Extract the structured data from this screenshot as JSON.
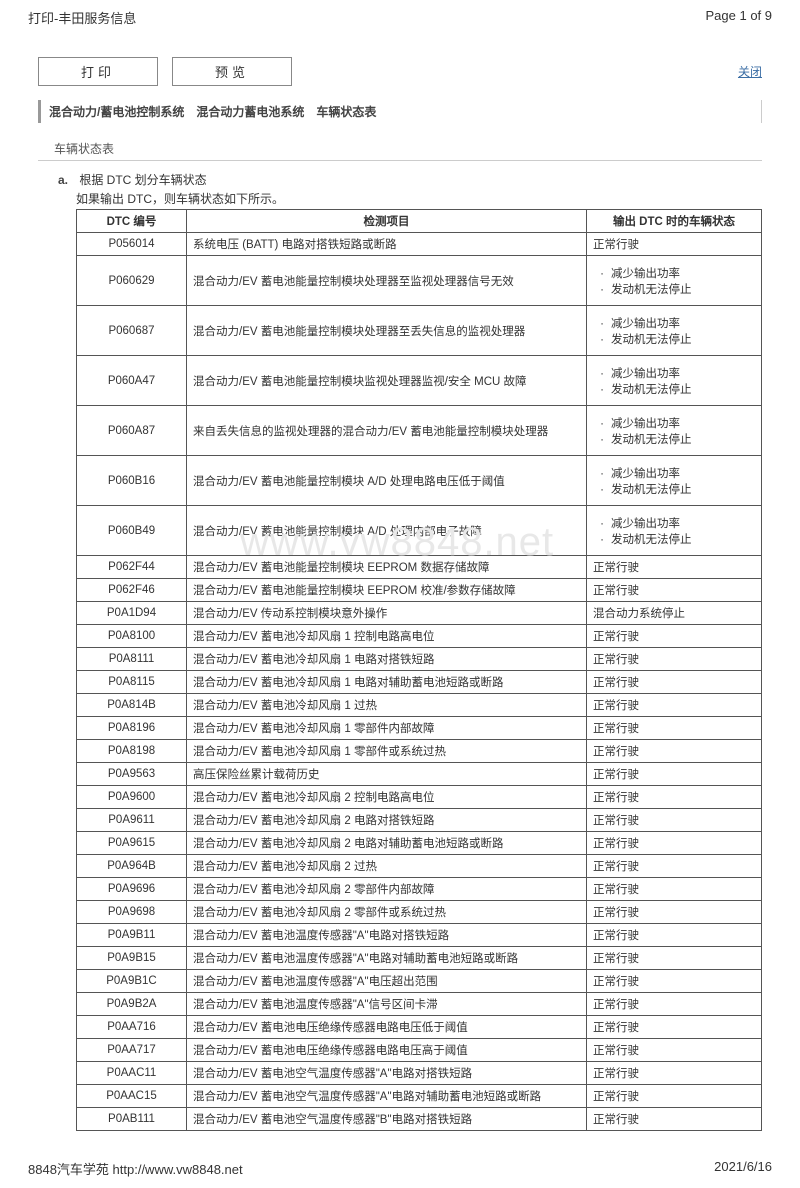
{
  "header": {
    "title": "打印-丰田服务信息",
    "page_label": "Page 1 of 9"
  },
  "toolbar": {
    "print": "打印",
    "preview": "预览",
    "close": "关闭"
  },
  "breadcrumb": "混合动力/蓄电池控制系统　混合动力蓄电池系统　车辆状态表",
  "section_label": "车辆状态表",
  "list_item": {
    "marker": "a.",
    "line1": "根据 DTC 划分车辆状态",
    "line2": "如果输出 DTC，则车辆状态如下所示。"
  },
  "table": {
    "headers": {
      "code": "DTC 编号",
      "desc": "检测项目",
      "status": "输出 DTC 时的车辆状态"
    },
    "status_pair": [
      "减少输出功率",
      "发动机无法停止"
    ],
    "rows": [
      {
        "code": "P056014",
        "desc": "系统电压 (BATT) 电路对搭铁短路或断路",
        "status_type": "normal"
      },
      {
        "code": "P060629",
        "desc": "混合动力/EV 蓄电池能量控制模块处理器至监视处理器信号无效",
        "status_type": "pair",
        "tall": true
      },
      {
        "code": "P060687",
        "desc": "混合动力/EV 蓄电池能量控制模块处理器至丢失信息的监视处理器",
        "status_type": "pair",
        "tall": true
      },
      {
        "code": "P060A47",
        "desc": "混合动力/EV 蓄电池能量控制模块监视处理器监视/安全 MCU 故障",
        "status_type": "pair",
        "tall": true
      },
      {
        "code": "P060A87",
        "desc": "来自丢失信息的监视处理器的混合动力/EV 蓄电池能量控制模块处理器",
        "status_type": "pair",
        "tall": true
      },
      {
        "code": "P060B16",
        "desc": "混合动力/EV 蓄电池能量控制模块 A/D 处理电路电压低于阈值",
        "status_type": "pair",
        "tall": true
      },
      {
        "code": "P060B49",
        "desc": "混合动力/EV 蓄电池能量控制模块 A/D 处理内部电子故障",
        "status_type": "pair",
        "tall": true
      },
      {
        "code": "P062F44",
        "desc": "混合动力/EV 蓄电池能量控制模块 EEPROM 数据存储故障",
        "status_type": "normal"
      },
      {
        "code": "P062F46",
        "desc": "混合动力/EV 蓄电池能量控制模块 EEPROM 校准/参数存储故障",
        "status_type": "normal"
      },
      {
        "code": "P0A1D94",
        "desc": "混合动力/EV 传动系控制模块意外操作",
        "status_type": "stop"
      },
      {
        "code": "P0A8100",
        "desc": "混合动力/EV 蓄电池冷却风扇 1 控制电路高电位",
        "status_type": "normal"
      },
      {
        "code": "P0A8111",
        "desc": "混合动力/EV 蓄电池冷却风扇 1 电路对搭铁短路",
        "status_type": "normal"
      },
      {
        "code": "P0A8115",
        "desc": "混合动力/EV 蓄电池冷却风扇 1 电路对辅助蓄电池短路或断路",
        "status_type": "normal"
      },
      {
        "code": "P0A814B",
        "desc": "混合动力/EV 蓄电池冷却风扇 1 过热",
        "status_type": "normal"
      },
      {
        "code": "P0A8196",
        "desc": "混合动力/EV 蓄电池冷却风扇 1 零部件内部故障",
        "status_type": "normal"
      },
      {
        "code": "P0A8198",
        "desc": "混合动力/EV 蓄电池冷却风扇 1 零部件或系统过热",
        "status_type": "normal"
      },
      {
        "code": "P0A9563",
        "desc": "高压保险丝累计载荷历史",
        "status_type": "normal"
      },
      {
        "code": "P0A9600",
        "desc": "混合动力/EV 蓄电池冷却风扇 2 控制电路高电位",
        "status_type": "normal"
      },
      {
        "code": "P0A9611",
        "desc": "混合动力/EV 蓄电池冷却风扇 2 电路对搭铁短路",
        "status_type": "normal"
      },
      {
        "code": "P0A9615",
        "desc": "混合动力/EV 蓄电池冷却风扇 2 电路对辅助蓄电池短路或断路",
        "status_type": "normal"
      },
      {
        "code": "P0A964B",
        "desc": "混合动力/EV 蓄电池冷却风扇 2 过热",
        "status_type": "normal"
      },
      {
        "code": "P0A9696",
        "desc": "混合动力/EV 蓄电池冷却风扇 2 零部件内部故障",
        "status_type": "normal"
      },
      {
        "code": "P0A9698",
        "desc": "混合动力/EV 蓄电池冷却风扇 2 零部件或系统过热",
        "status_type": "normal"
      },
      {
        "code": "P0A9B11",
        "desc": "混合动力/EV 蓄电池温度传感器\"A\"电路对搭铁短路",
        "status_type": "normal"
      },
      {
        "code": "P0A9B15",
        "desc": "混合动力/EV 蓄电池温度传感器\"A\"电路对辅助蓄电池短路或断路",
        "status_type": "normal"
      },
      {
        "code": "P0A9B1C",
        "desc": "混合动力/EV 蓄电池温度传感器\"A\"电压超出范围",
        "status_type": "normal"
      },
      {
        "code": "P0A9B2A",
        "desc": "混合动力/EV 蓄电池温度传感器\"A\"信号区间卡滞",
        "status_type": "normal"
      },
      {
        "code": "P0AA716",
        "desc": "混合动力/EV 蓄电池电压绝缘传感器电路电压低于阈值",
        "status_type": "normal"
      },
      {
        "code": "P0AA717",
        "desc": "混合动力/EV 蓄电池电压绝缘传感器电路电压高于阈值",
        "status_type": "normal"
      },
      {
        "code": "P0AAC11",
        "desc": "混合动力/EV 蓄电池空气温度传感器\"A\"电路对搭铁短路",
        "status_type": "normal"
      },
      {
        "code": "P0AAC15",
        "desc": "混合动力/EV 蓄电池空气温度传感器\"A\"电路对辅助蓄电池短路或断路",
        "status_type": "normal"
      },
      {
        "code": "P0AB111",
        "desc": "混合动力/EV 蓄电池空气温度传感器\"B\"电路对搭铁短路",
        "status_type": "normal"
      }
    ],
    "status_normal": "正常行驶",
    "status_stop": "混合动力系统停止"
  },
  "watermark": "www.vw8848.net",
  "footer": {
    "left": "8848汽车学苑  http://www.vw8848.net",
    "right": "2021/6/16"
  }
}
